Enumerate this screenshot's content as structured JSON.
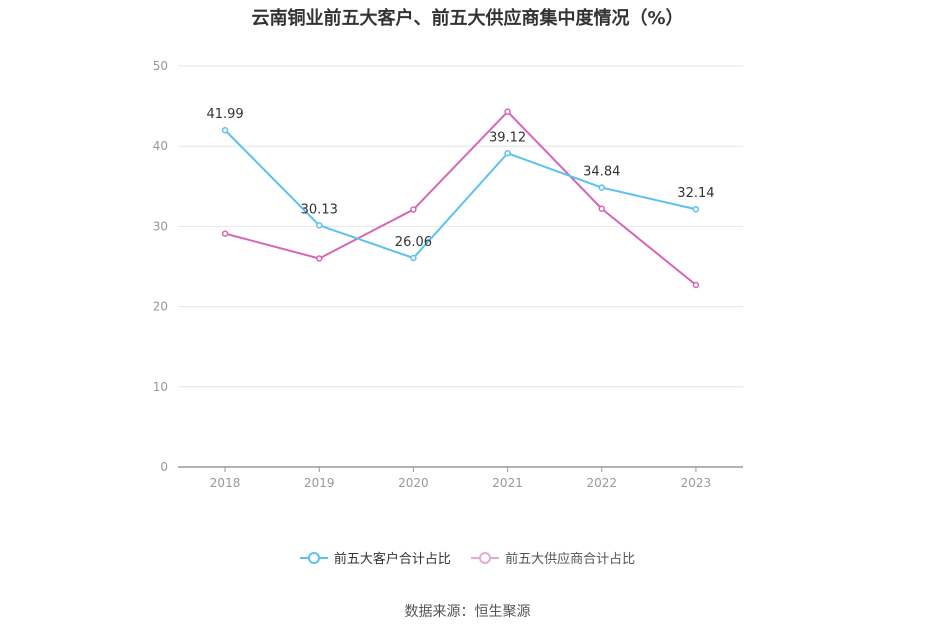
{
  "chart_data": {
    "type": "line",
    "title": "云南铜业前五大客户、前五大供应商集中度情况（%）",
    "categories": [
      "2018",
      "2019",
      "2020",
      "2021",
      "2022",
      "2023"
    ],
    "ylim": [
      0,
      50
    ],
    "yticks": [
      0,
      10,
      20,
      30,
      40,
      50
    ],
    "grid": true,
    "legend_position": "bottom",
    "series": [
      {
        "name": "前五大客户合计占比",
        "values": [
          41.99,
          30.13,
          26.06,
          39.12,
          34.84,
          32.14
        ],
        "color": "#5bc2ef",
        "labels": true
      },
      {
        "name": "前五大供应商合计占比",
        "values": [
          29.1,
          26.0,
          32.1,
          44.3,
          32.2,
          22.7
        ],
        "color": "#d667b4",
        "labels": false
      }
    ]
  },
  "source": "数据来源：恒生聚源"
}
